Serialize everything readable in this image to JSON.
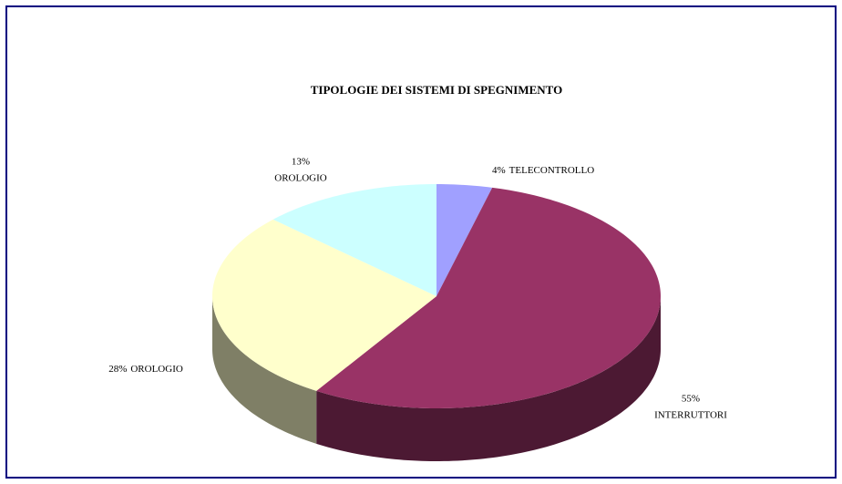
{
  "chart_data": {
    "type": "pie3d",
    "title": "TIPOLOGIE DEI SISTEMI DI SPEGNIMENTO",
    "categories": [
      "TELECONTROLLO",
      "INTERRUTTORI",
      "OROLOGIO",
      "OROLOGIO"
    ],
    "values": [
      4,
      55,
      28,
      13
    ],
    "value_labels": [
      "4%",
      "55%",
      "28%",
      "13%"
    ],
    "colors": [
      "#a0a0ff",
      "#993366",
      "#ffffcc",
      "#ccffff"
    ]
  }
}
